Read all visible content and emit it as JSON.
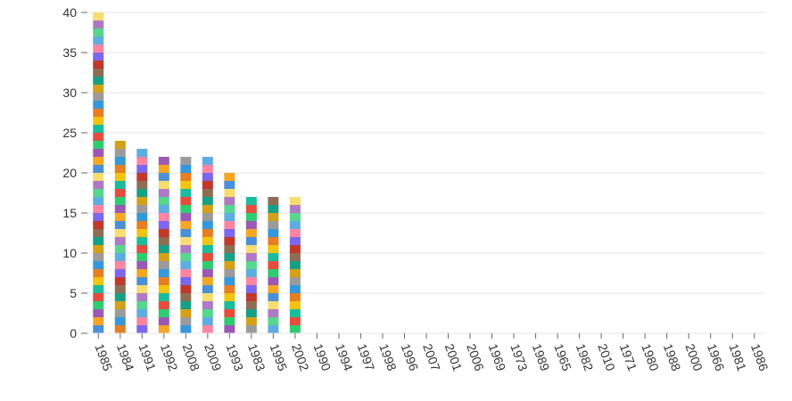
{
  "chart_data": {
    "type": "bar",
    "stacked": true,
    "grid": true,
    "ylim": [
      0,
      40
    ],
    "yticks": [
      0,
      5,
      10,
      15,
      20,
      25,
      30,
      35,
      40
    ],
    "categories": [
      "1985",
      "1984",
      "1991",
      "1992",
      "2008",
      "2009",
      "1993",
      "1983",
      "1995",
      "2002",
      "1990",
      "1994",
      "1997",
      "1998",
      "1996",
      "2007",
      "2001",
      "2006",
      "1969",
      "1973",
      "1989",
      "1965",
      "1982",
      "2010",
      "1971",
      "1980",
      "1988",
      "2000",
      "1966",
      "1981",
      "1986"
    ],
    "values": [
      40,
      24,
      23,
      22,
      22,
      22,
      20,
      17,
      17,
      17,
      0,
      0,
      0,
      0,
      0,
      0,
      0,
      0,
      0,
      0,
      0,
      0,
      0,
      0,
      0,
      0,
      0,
      0,
      0,
      0,
      0
    ],
    "segment_unit": 1,
    "colors": {
      "palette": [
        "#4a90d9",
        "#f5a623",
        "#9b59b6",
        "#2ecc71",
        "#e74c3c",
        "#1abc9c",
        "#f1c40f",
        "#e67e22",
        "#3498db",
        "#9b9b9b",
        "#d4a017",
        "#16a085",
        "#8e6e53",
        "#c0392b",
        "#7b68ee",
        "#ff85a2",
        "#5dade2",
        "#58d68d",
        "#af7ac5",
        "#f7dc6f"
      ],
      "grid": "#e5e5e5",
      "axis": "#666666",
      "text": "#333333"
    }
  }
}
